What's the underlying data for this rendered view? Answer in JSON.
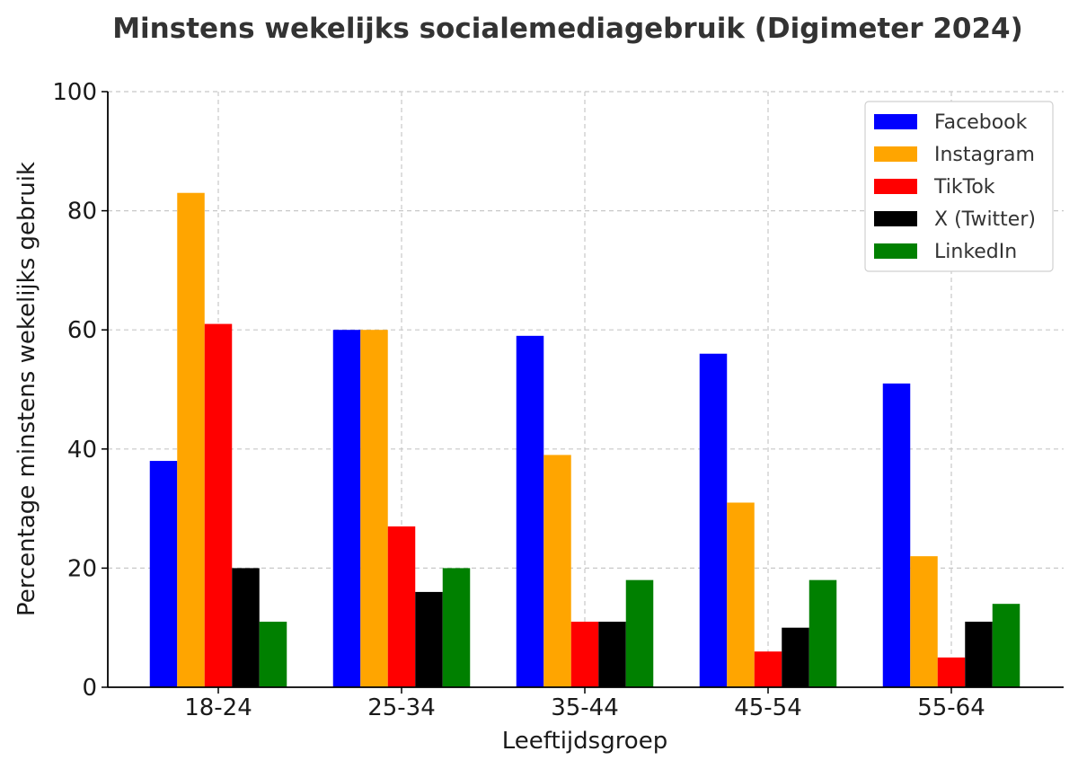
{
  "chart_data": {
    "type": "bar",
    "title": "Minstens wekelijks socialemediagebruik (Digimeter 2024)",
    "xlabel": "Leeftijdsgroep",
    "ylabel": "Percentage minstens wekelijks gebruik",
    "categories": [
      "18-24",
      "25-34",
      "35-44",
      "45-54",
      "55-64"
    ],
    "ylim": [
      0,
      100
    ],
    "yticks": [
      0,
      20,
      40,
      60,
      80,
      100
    ],
    "grid": true,
    "legend_position": "top-right",
    "series": [
      {
        "name": "Facebook",
        "color": "#0000ff",
        "values": [
          38,
          60,
          59,
          56,
          51
        ]
      },
      {
        "name": "Instagram",
        "color": "#ffa500",
        "values": [
          83,
          60,
          39,
          31,
          22
        ]
      },
      {
        "name": "TikTok",
        "color": "#ff0000",
        "values": [
          61,
          27,
          11,
          6,
          5
        ]
      },
      {
        "name": "X (Twitter)",
        "color": "#000000",
        "values": [
          20,
          16,
          11,
          10,
          11
        ]
      },
      {
        "name": "LinkedIn",
        "color": "#008000",
        "values": [
          11,
          20,
          18,
          18,
          14
        ]
      }
    ]
  }
}
